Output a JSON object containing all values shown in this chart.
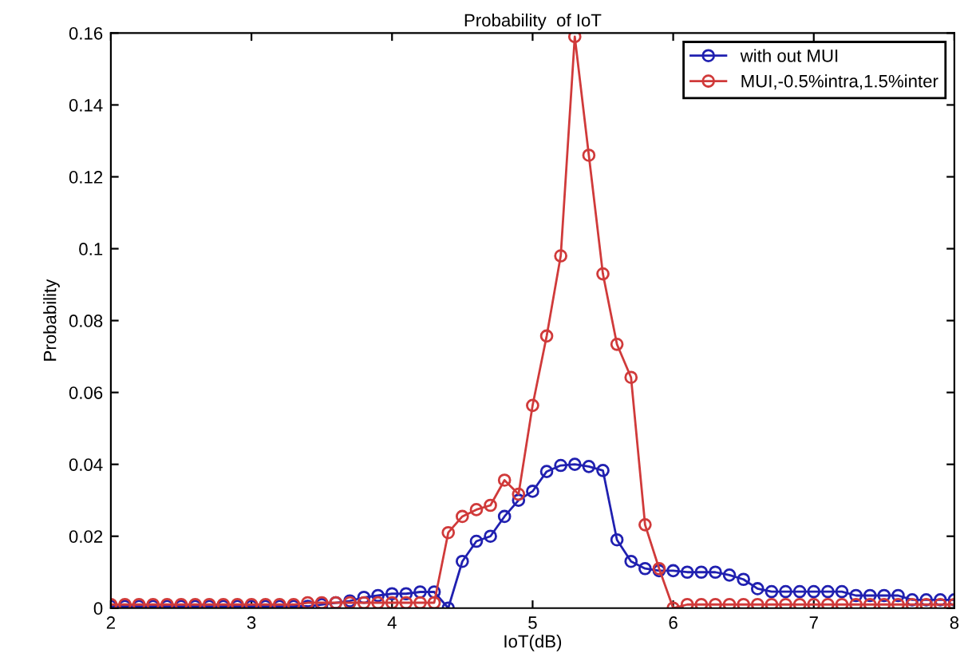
{
  "chart_data": {
    "type": "line",
    "title": "Probability  of IoT",
    "xlabel": "IoT(dB)",
    "ylabel": "Probability",
    "x": [
      2.0,
      2.1,
      2.2,
      2.3,
      2.4,
      2.5,
      2.6,
      2.7,
      2.8,
      2.9,
      3.0,
      3.1,
      3.2,
      3.3,
      3.4,
      3.5,
      3.6,
      3.7,
      3.8,
      3.9,
      4.0,
      4.1,
      4.2,
      4.3,
      4.4,
      4.5,
      4.6,
      4.7,
      4.8,
      4.9,
      5.0,
      5.1,
      5.2,
      5.3,
      5.4,
      5.5,
      5.6,
      5.7,
      5.8,
      5.9,
      6.0,
      6.1,
      6.2,
      6.3,
      6.4,
      6.5,
      6.6,
      6.7,
      6.8,
      6.9,
      7.0,
      7.1,
      7.2,
      7.3,
      7.4,
      7.5,
      7.6,
      7.7,
      7.8,
      7.9,
      8.0
    ],
    "series": [
      {
        "name": "with out MUI",
        "color": "#2020b0",
        "values": [
          0.0005,
          0.0005,
          0.0005,
          0.0005,
          0.0005,
          0.0005,
          0.0005,
          0.0005,
          0.0005,
          0.0005,
          0.0005,
          0.0005,
          0.0005,
          0.0005,
          0.0005,
          0.001,
          0.0015,
          0.002,
          0.003,
          0.0035,
          0.004,
          0.004,
          0.0045,
          0.0045,
          0.0,
          0.013,
          0.0186,
          0.02,
          0.0255,
          0.03,
          0.0325,
          0.038,
          0.0397,
          0.04,
          0.0394,
          0.0383,
          0.019,
          0.013,
          0.011,
          0.0104,
          0.0104,
          0.01,
          0.01,
          0.01,
          0.0092,
          0.008,
          0.0054,
          0.0046,
          0.0046,
          0.0046,
          0.0046,
          0.0046,
          0.0046,
          0.0035,
          0.0035,
          0.0035,
          0.0035,
          0.0023,
          0.0023,
          0.0023,
          0.0023
        ]
      },
      {
        "name": "MUI,-0.5%intra,1.5%inter",
        "color": "#d03a3a",
        "values": [
          0.001,
          0.001,
          0.001,
          0.001,
          0.001,
          0.001,
          0.001,
          0.001,
          0.001,
          0.001,
          0.001,
          0.001,
          0.001,
          0.001,
          0.0015,
          0.0015,
          0.0015,
          0.0015,
          0.0015,
          0.0015,
          0.0015,
          0.0015,
          0.0015,
          0.0015,
          0.021,
          0.0255,
          0.0274,
          0.0286,
          0.0356,
          0.0317,
          0.0564,
          0.0757,
          0.098,
          0.159,
          0.126,
          0.093,
          0.0734,
          0.0642,
          0.0232,
          0.011,
          0.0,
          0.001,
          0.001,
          0.001,
          0.001,
          0.001,
          0.001,
          0.001,
          0.001,
          0.001,
          0.001,
          0.001,
          0.001,
          0.001,
          0.001,
          0.001,
          0.001,
          0.001,
          0.001,
          0.001,
          0.001
        ]
      }
    ],
    "xlim": [
      2,
      8
    ],
    "xticks": [
      2,
      3,
      4,
      5,
      6,
      7,
      8
    ],
    "ylim": [
      0,
      0.16
    ],
    "yticks": [
      0,
      0.02,
      0.04,
      0.06,
      0.08,
      0.1,
      0.12,
      0.14,
      0.16
    ],
    "marker": "circle",
    "legend": "top right",
    "grid": false
  }
}
